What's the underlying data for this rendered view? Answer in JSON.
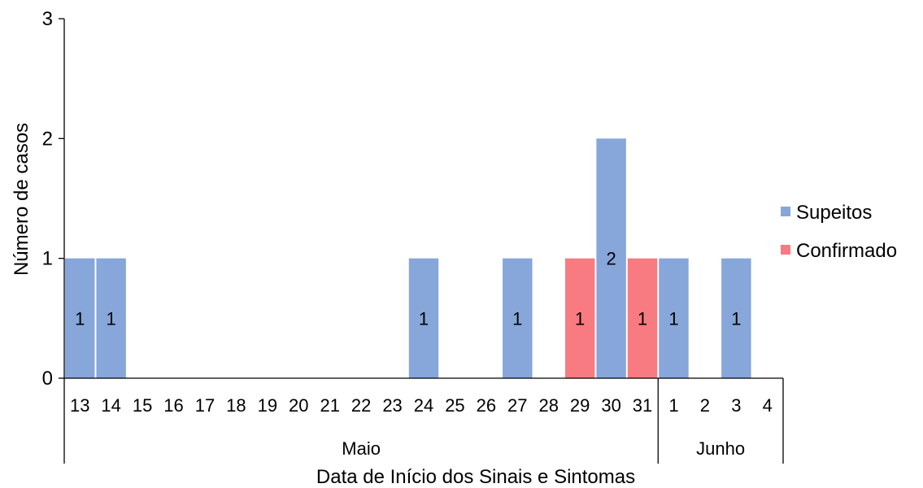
{
  "chart_data": {
    "type": "bar",
    "xlabel": "Data de Início dos Sinais e Sintomas",
    "ylabel": "Número de casos",
    "ylim": [
      0,
      3
    ],
    "yticks": [
      "0",
      "1",
      "2",
      "3"
    ],
    "categories": [
      "13",
      "14",
      "15",
      "16",
      "17",
      "18",
      "19",
      "20",
      "21",
      "22",
      "23",
      "24",
      "25",
      "26",
      "27",
      "28",
      "29",
      "30",
      "31",
      "1",
      "2",
      "3",
      "4"
    ],
    "groups": [
      {
        "label": "Maio",
        "count": 19
      },
      {
        "label": "Junho",
        "count": 4
      }
    ],
    "series": [
      {
        "name": "Supeitos",
        "color": "#87a6d9",
        "values": [
          1,
          1,
          0,
          0,
          0,
          0,
          0,
          0,
          0,
          0,
          0,
          1,
          0,
          0,
          1,
          0,
          0,
          2,
          0,
          1,
          0,
          1,
          0
        ]
      },
      {
        "name": "Confirmado",
        "color": "#f77b80",
        "values": [
          0,
          0,
          0,
          0,
          0,
          0,
          0,
          0,
          0,
          0,
          0,
          0,
          0,
          0,
          0,
          0,
          1,
          0,
          1,
          0,
          0,
          0,
          0
        ]
      }
    ],
    "data_labels": [
      "1",
      "1",
      "",
      "",
      "",
      "",
      "",
      "",
      "",
      "",
      "",
      "1",
      "",
      "",
      "1",
      "",
      "1",
      "2",
      "1",
      "1",
      "",
      "1",
      ""
    ],
    "legend_position": "right",
    "grid": false
  }
}
